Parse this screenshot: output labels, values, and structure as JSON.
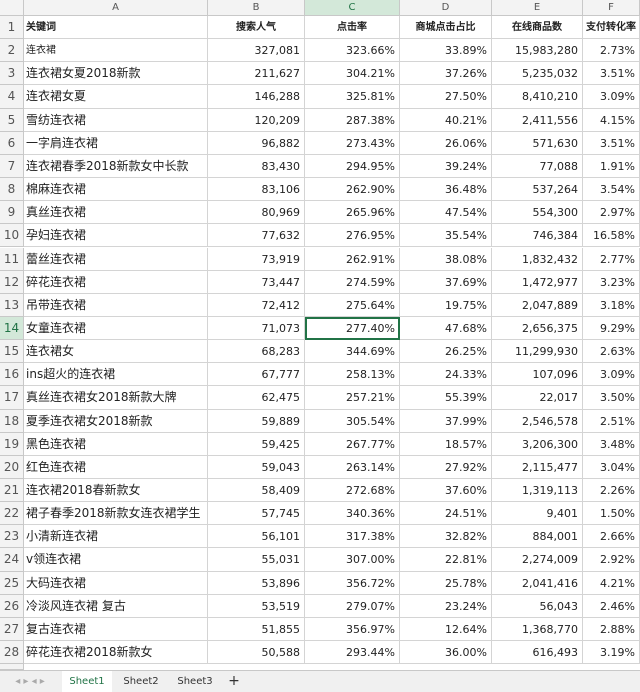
{
  "spreadsheet": {
    "columns": [
      "A",
      "B",
      "C",
      "D",
      "E",
      "F"
    ],
    "header": {
      "row_number": 1,
      "cells": [
        "关键词",
        "搜索人气",
        "点击率",
        "商城点击占比",
        "在线商品数",
        "支付转化率"
      ]
    },
    "rows": [
      {
        "row_number": 2,
        "cells": [
          "连衣裙",
          "327,081",
          "323.66%",
          "33.89%",
          "15,983,280",
          "2.73%"
        ]
      },
      {
        "row_number": 3,
        "cells": [
          "连衣裙女夏2018新款",
          "211,627",
          "304.21%",
          "37.26%",
          "5,235,032",
          "3.51%"
        ]
      },
      {
        "row_number": 4,
        "cells": [
          "连衣裙女夏",
          "146,288",
          "325.81%",
          "27.50%",
          "8,410,210",
          "3.09%"
        ]
      },
      {
        "row_number": 5,
        "cells": [
          "雪纺连衣裙",
          "120,209",
          "287.38%",
          "40.21%",
          "2,411,556",
          "4.15%"
        ]
      },
      {
        "row_number": 6,
        "cells": [
          "一字肩连衣裙",
          "96,882",
          "273.43%",
          "26.06%",
          "571,630",
          "3.51%"
        ]
      },
      {
        "row_number": 7,
        "cells": [
          "连衣裙春季2018新款女中长款",
          "83,430",
          "294.95%",
          "39.24%",
          "77,088",
          "1.91%"
        ]
      },
      {
        "row_number": 8,
        "cells": [
          "棉麻连衣裙",
          "83,106",
          "262.90%",
          "36.48%",
          "537,264",
          "3.54%"
        ]
      },
      {
        "row_number": 9,
        "cells": [
          "真丝连衣裙",
          "80,969",
          "265.96%",
          "47.54%",
          "554,300",
          "2.97%"
        ]
      },
      {
        "row_number": 10,
        "cells": [
          "孕妇连衣裙",
          "77,632",
          "276.95%",
          "35.54%",
          "746,384",
          "16.58%"
        ]
      },
      {
        "row_number": 11,
        "cells": [
          "蕾丝连衣裙",
          "73,919",
          "262.91%",
          "38.08%",
          "1,832,432",
          "2.77%"
        ]
      },
      {
        "row_number": 12,
        "cells": [
          "碎花连衣裙",
          "73,447",
          "274.59%",
          "37.69%",
          "1,472,977",
          "3.23%"
        ]
      },
      {
        "row_number": 13,
        "cells": [
          "吊带连衣裙",
          "72,412",
          "275.64%",
          "19.75%",
          "2,047,889",
          "3.18%"
        ]
      },
      {
        "row_number": 14,
        "cells": [
          "女童连衣裙",
          "71,073",
          "277.40%",
          "47.68%",
          "2,656,375",
          "9.29%"
        ]
      },
      {
        "row_number": 15,
        "cells": [
          "连衣裙女",
          "68,283",
          "344.69%",
          "26.25%",
          "11,299,930",
          "2.63%"
        ]
      },
      {
        "row_number": 16,
        "cells": [
          "ins超火的连衣裙",
          "67,777",
          "258.13%",
          "24.33%",
          "107,096",
          "3.09%"
        ]
      },
      {
        "row_number": 17,
        "cells": [
          "真丝连衣裙女2018新款大牌",
          "62,475",
          "257.21%",
          "55.39%",
          "22,017",
          "3.50%"
        ]
      },
      {
        "row_number": 18,
        "cells": [
          "夏季连衣裙女2018新款",
          "59,889",
          "305.54%",
          "37.99%",
          "2,546,578",
          "2.51%"
        ]
      },
      {
        "row_number": 19,
        "cells": [
          "黑色连衣裙",
          "59,425",
          "267.77%",
          "18.57%",
          "3,206,300",
          "3.48%"
        ]
      },
      {
        "row_number": 20,
        "cells": [
          "红色连衣裙",
          "59,043",
          "263.14%",
          "27.92%",
          "2,115,477",
          "3.04%"
        ]
      },
      {
        "row_number": 21,
        "cells": [
          "连衣裙2018春新款女",
          "58,409",
          "272.68%",
          "37.60%",
          "1,319,113",
          "2.26%"
        ]
      },
      {
        "row_number": 22,
        "cells": [
          "裙子春季2018新款女连衣裙学生",
          "57,745",
          "340.36%",
          "24.51%",
          "9,401",
          "1.50%"
        ]
      },
      {
        "row_number": 23,
        "cells": [
          "小清新连衣裙",
          "56,101",
          "317.38%",
          "32.82%",
          "884,001",
          "2.66%"
        ]
      },
      {
        "row_number": 24,
        "cells": [
          "v领连衣裙",
          "55,031",
          "307.00%",
          "22.81%",
          "2,274,009",
          "2.92%"
        ]
      },
      {
        "row_number": 25,
        "cells": [
          "大码连衣裙",
          "53,896",
          "356.72%",
          "25.78%",
          "2,041,416",
          "4.21%"
        ]
      },
      {
        "row_number": 26,
        "cells": [
          "冷淡风连衣裙 复古",
          "53,519",
          "279.07%",
          "23.24%",
          "56,043",
          "2.46%"
        ]
      },
      {
        "row_number": 27,
        "cells": [
          "复古连衣裙",
          "51,855",
          "356.97%",
          "12.64%",
          "1,368,770",
          "2.88%"
        ]
      },
      {
        "row_number": 28,
        "cells": [
          "碎花连衣裙2018新款女",
          "50,588",
          "293.44%",
          "36.00%",
          "616,493",
          "3.19%"
        ]
      }
    ],
    "selected_cell": "C14",
    "sheets": [
      "Sheet1",
      "Sheet2",
      "Sheet3"
    ],
    "active_sheet": "Sheet1",
    "add_sheet": "+"
  }
}
